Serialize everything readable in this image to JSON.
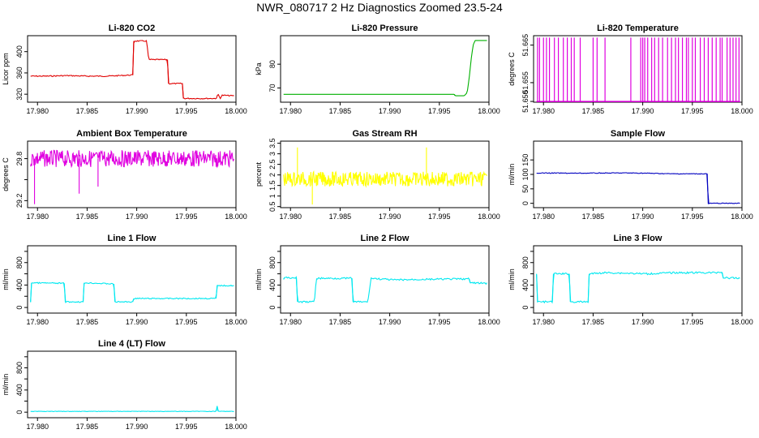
{
  "figure_title": "NWR_080717  2 Hz Diagnostics Zoomed 23.5-24",
  "chart_data": [
    {
      "type": "line",
      "title": "Li-820 CO2",
      "xlabel": "",
      "ylabel": "Licor ppm",
      "color": "#e00000",
      "xlim": [
        17.979,
        18.0
      ],
      "ylim": [
        305,
        430
      ],
      "xticks": [
        17.98,
        17.985,
        17.99,
        17.995,
        18.0
      ],
      "xtick_labels": [
        "17.980",
        "17.985",
        "17.990",
        "17.995",
        "18.000"
      ],
      "yticks": [
        320,
        360,
        400
      ],
      "ytick_labels": [
        "320",
        "360",
        "400"
      ],
      "series": [
        {
          "name": "CO2",
          "x": [
            17.9793,
            17.981,
            17.983,
            17.985,
            17.987,
            17.9894,
            17.9896,
            17.9897,
            17.991,
            17.9912,
            17.9931,
            17.9932,
            17.9946,
            17.9947,
            17.998,
            17.9982,
            17.9984,
            17.9986,
            17.9998
          ],
          "y": [
            354,
            354,
            355,
            354,
            354,
            356,
            356,
            420,
            420,
            385,
            385,
            340,
            340,
            312,
            312,
            320,
            312,
            318,
            317
          ],
          "noise": 1
        }
      ]
    },
    {
      "type": "line",
      "title": "Li-820 Pressure",
      "xlabel": "",
      "ylabel": "kPa",
      "color": "#00b000",
      "xlim": [
        17.979,
        18.0
      ],
      "ylim": [
        64,
        92
      ],
      "xticks": [
        17.98,
        17.985,
        17.99,
        17.995,
        18.0
      ],
      "xtick_labels": [
        "17.980",
        "17.985",
        "17.990",
        "17.995",
        "18.000"
      ],
      "yticks": [
        70,
        80
      ],
      "ytick_labels": [
        "70",
        "80"
      ],
      "series": [
        {
          "name": "Pressure",
          "x": [
            17.9793,
            17.9965,
            17.9966,
            17.9975,
            17.9978,
            17.998,
            17.9982,
            17.9984,
            17.9986,
            17.9998
          ],
          "y": [
            67.3,
            67.3,
            66.7,
            66.7,
            68,
            74,
            82,
            88,
            90,
            90
          ],
          "noise": 0
        }
      ]
    },
    {
      "type": "line",
      "title": "Li-820 Temperature",
      "xlabel": "",
      "ylabel": "degrees C",
      "color": "#e000e0",
      "xlim": [
        17.979,
        18.0
      ],
      "ylim": [
        51.6498,
        51.6675
      ],
      "xticks": [
        17.98,
        17.985,
        17.99,
        17.995,
        18.0
      ],
      "xtick_labels": [
        "17.980",
        "17.985",
        "17.990",
        "17.995",
        "18.000"
      ],
      "yticks": [
        51.65,
        51.655,
        51.665
      ],
      "ytick_labels": [
        "51.650",
        "51.655",
        "51.665"
      ],
      "series": [
        {
          "name": "Temperature",
          "spikes": [
            17.9794,
            17.9796,
            17.98,
            17.9803,
            17.9806,
            17.9811,
            17.9815,
            17.982,
            17.9824,
            17.9828,
            17.9831,
            17.9837,
            17.985,
            17.9854,
            17.9862,
            17.9888,
            17.9898,
            17.99,
            17.9902,
            17.9905,
            17.9909,
            17.9912,
            17.9916,
            17.992,
            17.9925,
            17.9929,
            17.9933,
            17.9936,
            17.994,
            17.9944,
            17.9946,
            17.995,
            17.9953,
            17.9958,
            17.9962,
            17.9966,
            17.997,
            17.9974,
            17.9978,
            17.998,
            17.9985,
            17.9988,
            17.9991,
            17.9994,
            17.9997
          ],
          "base": 51.65,
          "top": 51.667
        }
      ]
    },
    {
      "type": "line",
      "title": "Ambient Box Temperature",
      "xlabel": "",
      "ylabel": "degrees C",
      "color": "#e000e0",
      "xlim": [
        17.979,
        18.0
      ],
      "ylim": [
        29.1,
        30.05
      ],
      "xticks": [
        17.98,
        17.985,
        17.99,
        17.995,
        18.0
      ],
      "xtick_labels": [
        "17.980",
        "17.985",
        "17.990",
        "17.995",
        "18.000"
      ],
      "yticks": [
        29.2,
        29.5,
        29.8
      ],
      "ytick_labels": [
        "29.2",
        "",
        "29.8"
      ],
      "series": [
        {
          "name": "Ambient",
          "x": [
            17.9793,
            17.9998
          ],
          "y": [
            29.8,
            29.8
          ],
          "noise": 0.12,
          "outliers": [
            [
              17.9797,
              29.15
            ],
            [
              17.9842,
              29.3
            ],
            [
              17.9861,
              29.4
            ]
          ]
        }
      ]
    },
    {
      "type": "line",
      "title": "Gas Stream RH",
      "xlabel": "",
      "ylabel": "percent",
      "color": "#ffff00",
      "xlim": [
        17.979,
        18.0
      ],
      "ylim": [
        0.45,
        3.6
      ],
      "xticks": [
        17.98,
        17.985,
        17.99,
        17.995,
        18.0
      ],
      "xtick_labels": [
        "17.980",
        "17.985",
        "17.990",
        "17.995",
        "18.000"
      ],
      "yticks": [
        0.5,
        1.5,
        2.5,
        3.5
      ],
      "ytick_labels": [
        "0.5",
        "1.5",
        "2.5",
        "3.5"
      ],
      "extra_yticks": [
        1.0,
        2.0,
        3.0
      ],
      "extra_ytick_labels": [
        "1",
        "2",
        "3"
      ],
      "series": [
        {
          "name": "RH",
          "x": [
            17.9793,
            17.9998
          ],
          "y": [
            1.8,
            1.8
          ],
          "noise": 0.35,
          "outliers": [
            [
              17.9807,
              3.3
            ],
            [
              17.9822,
              0.6
            ],
            [
              17.9937,
              3.3
            ]
          ]
        }
      ]
    },
    {
      "type": "line",
      "title": "Sample Flow",
      "xlabel": "",
      "ylabel": "ml/min",
      "color": "#0000c0",
      "xlim": [
        17.979,
        18.0
      ],
      "ylim": [
        -15,
        215
      ],
      "xticks": [
        17.98,
        17.985,
        17.99,
        17.995,
        18.0
      ],
      "xtick_labels": [
        "17.980",
        "17.985",
        "17.990",
        "17.995",
        "18.000"
      ],
      "yticks": [
        0,
        50,
        100,
        150
      ],
      "ytick_labels": [
        "0",
        "50",
        "100",
        "150"
      ],
      "series": [
        {
          "name": "Sample Flow",
          "x": [
            17.9793,
            17.983,
            17.9885,
            17.9905,
            17.993,
            17.9965,
            17.9966,
            17.9967,
            17.9998
          ],
          "y": [
            105,
            104,
            105,
            104,
            102,
            102,
            -2,
            0,
            0
          ],
          "noise": 1.2
        }
      ]
    },
    {
      "type": "line",
      "title": "Line 1 Flow",
      "xlabel": "",
      "ylabel": "ml/min",
      "color": "#00e8f0",
      "xlim": [
        17.979,
        18.0
      ],
      "ylim": [
        -100,
        1100
      ],
      "xticks": [
        17.98,
        17.985,
        17.99,
        17.995,
        18.0
      ],
      "xtick_labels": [
        "17.980",
        "17.985",
        "17.990",
        "17.995",
        "18.000"
      ],
      "yticks": [
        0,
        400,
        800
      ],
      "ytick_labels": [
        "0",
        "400",
        "800"
      ],
      "extra_yticks": [
        200,
        600,
        1000
      ],
      "series": [
        {
          "name": "Line 1",
          "x": [
            17.9793,
            17.9794,
            17.9827,
            17.9828,
            17.9846,
            17.9847,
            17.9877,
            17.9878,
            17.9896,
            17.9897,
            17.998,
            17.9981,
            17.9998
          ],
          "y": [
            100,
            440,
            430,
            100,
            100,
            440,
            420,
            100,
            100,
            160,
            160,
            390,
            390
          ],
          "noise": 10
        }
      ]
    },
    {
      "type": "line",
      "title": "Line 2 Flow",
      "xlabel": "",
      "ylabel": "ml/min",
      "color": "#00e8f0",
      "xlim": [
        17.979,
        18.0
      ],
      "ylim": [
        -100,
        1100
      ],
      "xticks": [
        17.98,
        17.985,
        17.99,
        17.995,
        18.0
      ],
      "xtick_labels": [
        "17.980",
        "17.985",
        "17.990",
        "17.995",
        "18.000"
      ],
      "yticks": [
        0,
        400,
        800
      ],
      "ytick_labels": [
        "0",
        "400",
        "800"
      ],
      "extra_yticks": [
        200,
        600,
        1000
      ],
      "series": [
        {
          "name": "Line 2",
          "x": [
            17.9793,
            17.9794,
            17.9806,
            17.9807,
            17.9824,
            17.9826,
            17.9862,
            17.9863,
            17.9878,
            17.9881,
            17.9905,
            17.993,
            17.998,
            17.9981,
            17.9998
          ],
          "y": [
            500,
            530,
            530,
            100,
            100,
            520,
            520,
            100,
            100,
            520,
            490,
            500,
            510,
            440,
            430
          ],
          "noise": 15
        }
      ]
    },
    {
      "type": "line",
      "title": "Line 3 Flow",
      "xlabel": "",
      "ylabel": "ml/min",
      "color": "#00e8f0",
      "xlim": [
        17.979,
        18.0
      ],
      "ylim": [
        -100,
        1100
      ],
      "xticks": [
        17.98,
        17.985,
        17.99,
        17.995,
        18.0
      ],
      "xtick_labels": [
        "17.980",
        "17.985",
        "17.990",
        "17.995",
        "18.000"
      ],
      "yticks": [
        0,
        400,
        800
      ],
      "ytick_labels": [
        "0",
        "400",
        "800"
      ],
      "extra_yticks": [
        200,
        600,
        1000
      ],
      "series": [
        {
          "name": "Line 3",
          "x": [
            17.9793,
            17.9794,
            17.9795,
            17.9809,
            17.981,
            17.9826,
            17.9827,
            17.9845,
            17.9846,
            17.9863,
            17.9865,
            17.9905,
            17.993,
            17.997,
            17.998,
            17.9981,
            17.9998
          ],
          "y": [
            600,
            100,
            100,
            100,
            600,
            600,
            100,
            100,
            600,
            620,
            620,
            600,
            620,
            620,
            630,
            530,
            520
          ],
          "noise": 15
        }
      ]
    },
    {
      "type": "line",
      "title": "Line 4 (LT) Flow",
      "xlabel": "",
      "ylabel": "ml/min",
      "color": "#00e8f0",
      "xlim": [
        17.979,
        18.0
      ],
      "ylim": [
        -100,
        1100
      ],
      "xticks": [
        17.98,
        17.985,
        17.99,
        17.995,
        18.0
      ],
      "xtick_labels": [
        "17.980",
        "17.985",
        "17.990",
        "17.995",
        "18.000"
      ],
      "yticks": [
        0,
        400,
        800
      ],
      "ytick_labels": [
        "0",
        "400",
        "800"
      ],
      "extra_yticks": [
        200,
        600,
        1000
      ],
      "series": [
        {
          "name": "Line 4",
          "x": [
            17.9793,
            17.998,
            17.9981,
            17.9982,
            17.9983,
            17.9998
          ],
          "y": [
            15,
            15,
            110,
            15,
            15,
            15
          ],
          "noise": 4
        }
      ]
    }
  ]
}
